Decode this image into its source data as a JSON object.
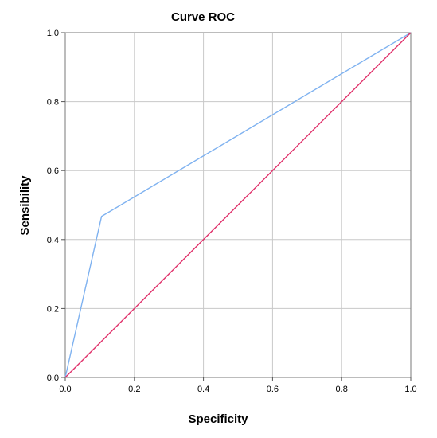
{
  "chart_data": {
    "type": "line",
    "title": "Curve ROC",
    "xlabel": "Specificity",
    "ylabel": "Sensibility",
    "xlim": [
      0,
      1
    ],
    "ylim": [
      0,
      1
    ],
    "grid": true,
    "x_ticks": [
      "0.0",
      "0.2",
      "0.4",
      "0.6",
      "0.8",
      "1.0"
    ],
    "y_ticks": [
      "0.0",
      "0.2",
      "0.4",
      "0.6",
      "0.8",
      "1.0"
    ],
    "series": [
      {
        "color": "#7fb2f0",
        "x": [
          0.0,
          0.105,
          1.0
        ],
        "y": [
          0.0,
          0.467,
          1.0
        ]
      },
      {
        "color": "#e0306a",
        "x": [
          0.0,
          1.0
        ],
        "y": [
          0.0,
          1.0
        ]
      }
    ]
  }
}
